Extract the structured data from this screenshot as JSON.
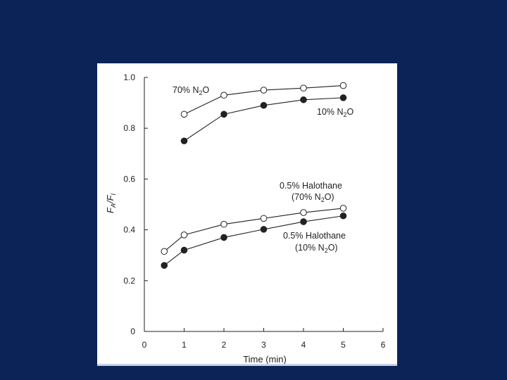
{
  "chart_data": {
    "type": "line",
    "xlabel": "Time (min)",
    "ylabel": "FA/FI",
    "xlim": [
      0,
      6
    ],
    "ylim": [
      0,
      1.0
    ],
    "x_ticks": [
      "0",
      "1",
      "2",
      "3",
      "4",
      "5",
      "6"
    ],
    "y_ticks": [
      "0",
      "0.2",
      "0.4",
      "0.6",
      "0.8",
      "1.0"
    ],
    "grid": false,
    "series": [
      {
        "name": "70% N2O",
        "marker": "open-circle",
        "color": "#222222",
        "x": [
          1,
          2,
          3,
          4,
          5
        ],
        "y": [
          0.855,
          0.93,
          0.95,
          0.958,
          0.968
        ]
      },
      {
        "name": "10% N2O",
        "marker": "filled-circle",
        "color": "#222222",
        "x": [
          1,
          2,
          3,
          4,
          5
        ],
        "y": [
          0.75,
          0.855,
          0.89,
          0.912,
          0.92
        ]
      },
      {
        "name": "0.5% Halothane (70% N2O)",
        "marker": "open-circle",
        "color": "#222222",
        "x": [
          0.5,
          1,
          2,
          3,
          4,
          5
        ],
        "y": [
          0.315,
          0.38,
          0.422,
          0.445,
          0.468,
          0.485
        ]
      },
      {
        "name": "0.5% Halothane (10% N2O)",
        "marker": "filled-circle",
        "color": "#222222",
        "x": [
          0.5,
          1,
          2,
          3,
          4,
          5
        ],
        "y": [
          0.26,
          0.32,
          0.37,
          0.402,
          0.432,
          0.455
        ]
      }
    ],
    "annotations": {
      "n70": "70% N2O",
      "n10": "10% N2O",
      "hal70_line1": "0.5% Halothane",
      "hal70_line2": "(70% N2O)",
      "hal10_line1": "0.5% Halothane",
      "hal10_line2": "(10% N2O)"
    }
  },
  "colors": {
    "background": "#0b2356",
    "panel": "#ffffff",
    "ink": "#222222"
  }
}
